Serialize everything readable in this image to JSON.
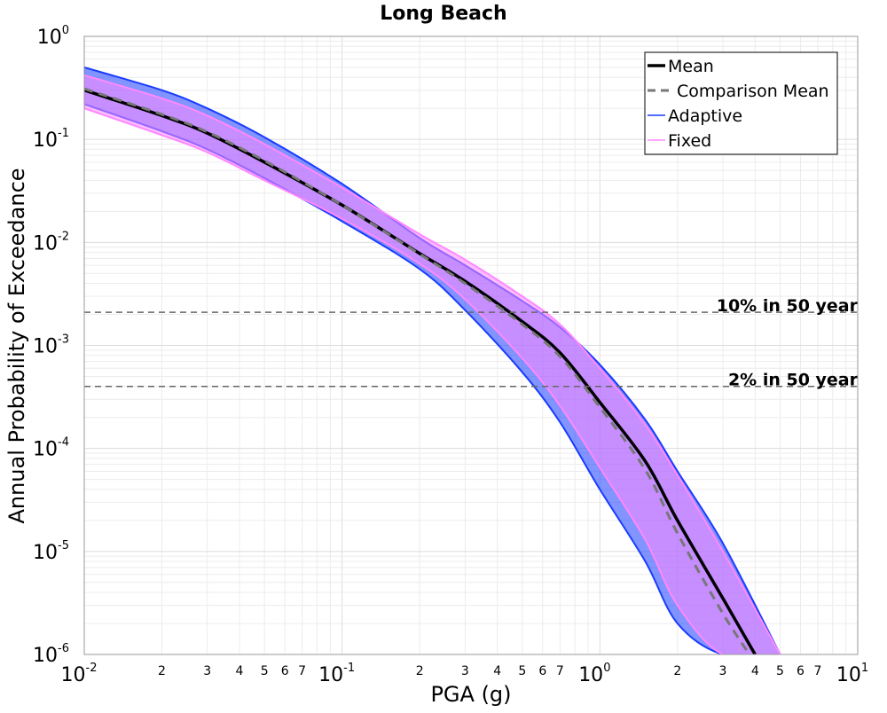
{
  "chart_data": {
    "type": "line",
    "title": "Long Beach",
    "xlabel": "PGA (g)",
    "ylabel": "Annual Probability of Exceedance",
    "xscale": "log",
    "yscale": "log",
    "xlim": [
      0.01,
      10
    ],
    "ylim": [
      1e-06,
      1
    ],
    "grid": true,
    "legend_position": "top-right",
    "x_ticks": {
      "major": [
        {
          "base": "10",
          "exp": "-2"
        },
        {
          "base": "10",
          "exp": "-1"
        },
        {
          "base": "10",
          "exp": "0"
        },
        {
          "base": "10",
          "exp": "1"
        }
      ],
      "minor_labels": [
        "2",
        "3",
        "4",
        "5",
        "6",
        "7"
      ]
    },
    "y_ticks": {
      "major": [
        {
          "base": "10",
          "exp": "0"
        },
        {
          "base": "10",
          "exp": "-1"
        },
        {
          "base": "10",
          "exp": "-2"
        },
        {
          "base": "10",
          "exp": "-3"
        },
        {
          "base": "10",
          "exp": "-4"
        },
        {
          "base": "10",
          "exp": "-5"
        },
        {
          "base": "10",
          "exp": "-6"
        }
      ]
    },
    "legend": [
      {
        "label": "Mean",
        "color": "#000000",
        "style": "solid-thick"
      },
      {
        "label": "Comparison Mean",
        "color": "#777777",
        "style": "dashed"
      },
      {
        "label": "Adaptive",
        "color": "#1a3cff",
        "style": "solid-thin"
      },
      {
        "label": "Fixed",
        "color": "#ff88ff",
        "style": "solid-thin"
      }
    ],
    "reference_lines": [
      {
        "label": "10% in 50 year",
        "y": 0.0021
      },
      {
        "label": "2% in 50 year",
        "y": 0.0004
      }
    ],
    "series": [
      {
        "name": "Mean",
        "color": "#000000",
        "x": [
          0.01,
          0.02,
          0.03,
          0.05,
          0.1,
          0.2,
          0.3,
          0.5,
          0.7,
          1.0,
          1.5,
          2.0,
          3.0,
          4.0
        ],
        "y": [
          0.3,
          0.17,
          0.115,
          0.06,
          0.023,
          0.0078,
          0.0042,
          0.0017,
          0.00085,
          0.00028,
          7.5e-05,
          2e-05,
          3.5e-06,
          1e-06
        ]
      },
      {
        "name": "Comparison Mean",
        "color": "#777777",
        "x": [
          0.01,
          0.02,
          0.03,
          0.05,
          0.1,
          0.2,
          0.3,
          0.5,
          0.7,
          1.0,
          1.5,
          2.0,
          3.0,
          3.8
        ],
        "y": [
          0.31,
          0.175,
          0.118,
          0.062,
          0.023,
          0.0077,
          0.004,
          0.0016,
          0.00078,
          0.00025,
          6.2e-05,
          1.5e-05,
          2.5e-06,
          1e-06
        ]
      },
      {
        "name": "Adaptive",
        "color": "#1a3cff",
        "envelope": true,
        "x": [
          0.01,
          0.02,
          0.03,
          0.05,
          0.1,
          0.2,
          0.3,
          0.5,
          0.7,
          1.0,
          1.5,
          2.0,
          3.0,
          5.0
        ],
        "y_lower": [
          0.22,
          0.12,
          0.08,
          0.042,
          0.016,
          0.0055,
          0.0022,
          0.00055,
          0.00018,
          4e-05,
          8e-06,
          2e-06,
          1e-06,
          1e-06
        ],
        "y_upper": [
          0.5,
          0.3,
          0.2,
          0.105,
          0.037,
          0.011,
          0.006,
          0.0027,
          0.0015,
          0.00065,
          0.00019,
          6e-05,
          1.2e-05,
          1e-06
        ]
      },
      {
        "name": "Fixed",
        "color": "#ff88ff",
        "envelope": true,
        "x": [
          0.01,
          0.02,
          0.03,
          0.05,
          0.1,
          0.2,
          0.3,
          0.5,
          0.7,
          1.0,
          1.5,
          2.0,
          3.0,
          5.0
        ],
        "y_lower": [
          0.2,
          0.11,
          0.075,
          0.04,
          0.017,
          0.0062,
          0.0028,
          0.00075,
          0.00026,
          6.5e-05,
          1.3e-05,
          3e-06,
          1e-06,
          1e-06
        ],
        "y_upper": [
          0.42,
          0.25,
          0.17,
          0.09,
          0.034,
          0.012,
          0.0068,
          0.003,
          0.0016,
          0.0006,
          0.00017,
          5.5e-05,
          1e-05,
          1e-06
        ]
      }
    ]
  }
}
